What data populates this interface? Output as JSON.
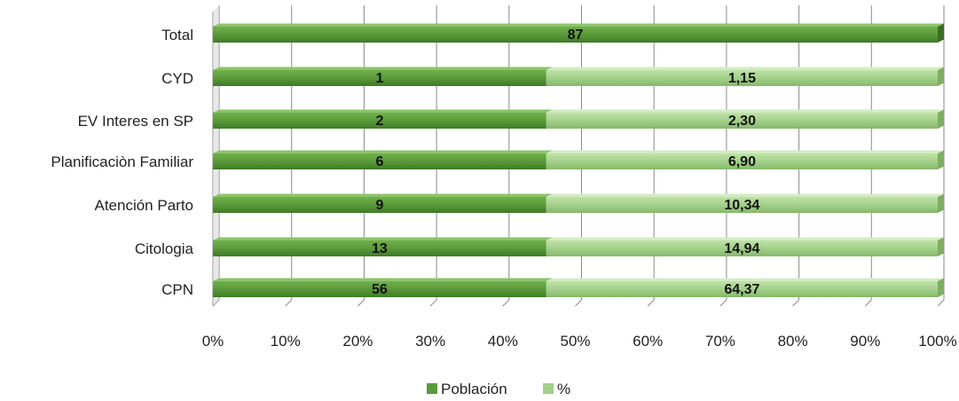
{
  "chart_data": {
    "type": "bar",
    "orientation": "horizontal",
    "stacked": "percent",
    "three_d": true,
    "categories": [
      "Total",
      "CYD",
      "EV Interes en SP",
      "Planificaciòn Familiar",
      "Atención Parto",
      "Citologia",
      "CPN"
    ],
    "series": [
      {
        "name": "Población",
        "color": "#5a9a3a",
        "values": [
          87,
          1,
          2,
          6,
          9,
          13,
          56
        ],
        "labels": [
          "87",
          "1",
          "2",
          "6",
          "9",
          "13",
          "56"
        ]
      },
      {
        "name": "%",
        "color": "#a3d08a",
        "values": [
          null,
          1.15,
          2.3,
          6.9,
          10.34,
          14.94,
          64.37
        ],
        "labels": [
          "",
          "1,15",
          "2,30",
          "6,90",
          "10,34",
          "14,94",
          "64,37"
        ]
      }
    ],
    "display_share": {
      "Total": [
        100,
        0
      ],
      "CYD": [
        46,
        54
      ],
      "EV Interes en SP": [
        46,
        54
      ],
      "Planificaciòn Familiar": [
        46,
        54
      ],
      "Atención Parto": [
        46,
        54
      ],
      "Citologia": [
        46,
        54
      ],
      "CPN": [
        46,
        54
      ]
    },
    "xticks": [
      "0%",
      "10%",
      "20%",
      "30%",
      "40%",
      "50%",
      "60%",
      "70%",
      "80%",
      "90%",
      "100%"
    ],
    "xlim": [
      0,
      100
    ],
    "grid": true,
    "legend_position": "bottom"
  }
}
